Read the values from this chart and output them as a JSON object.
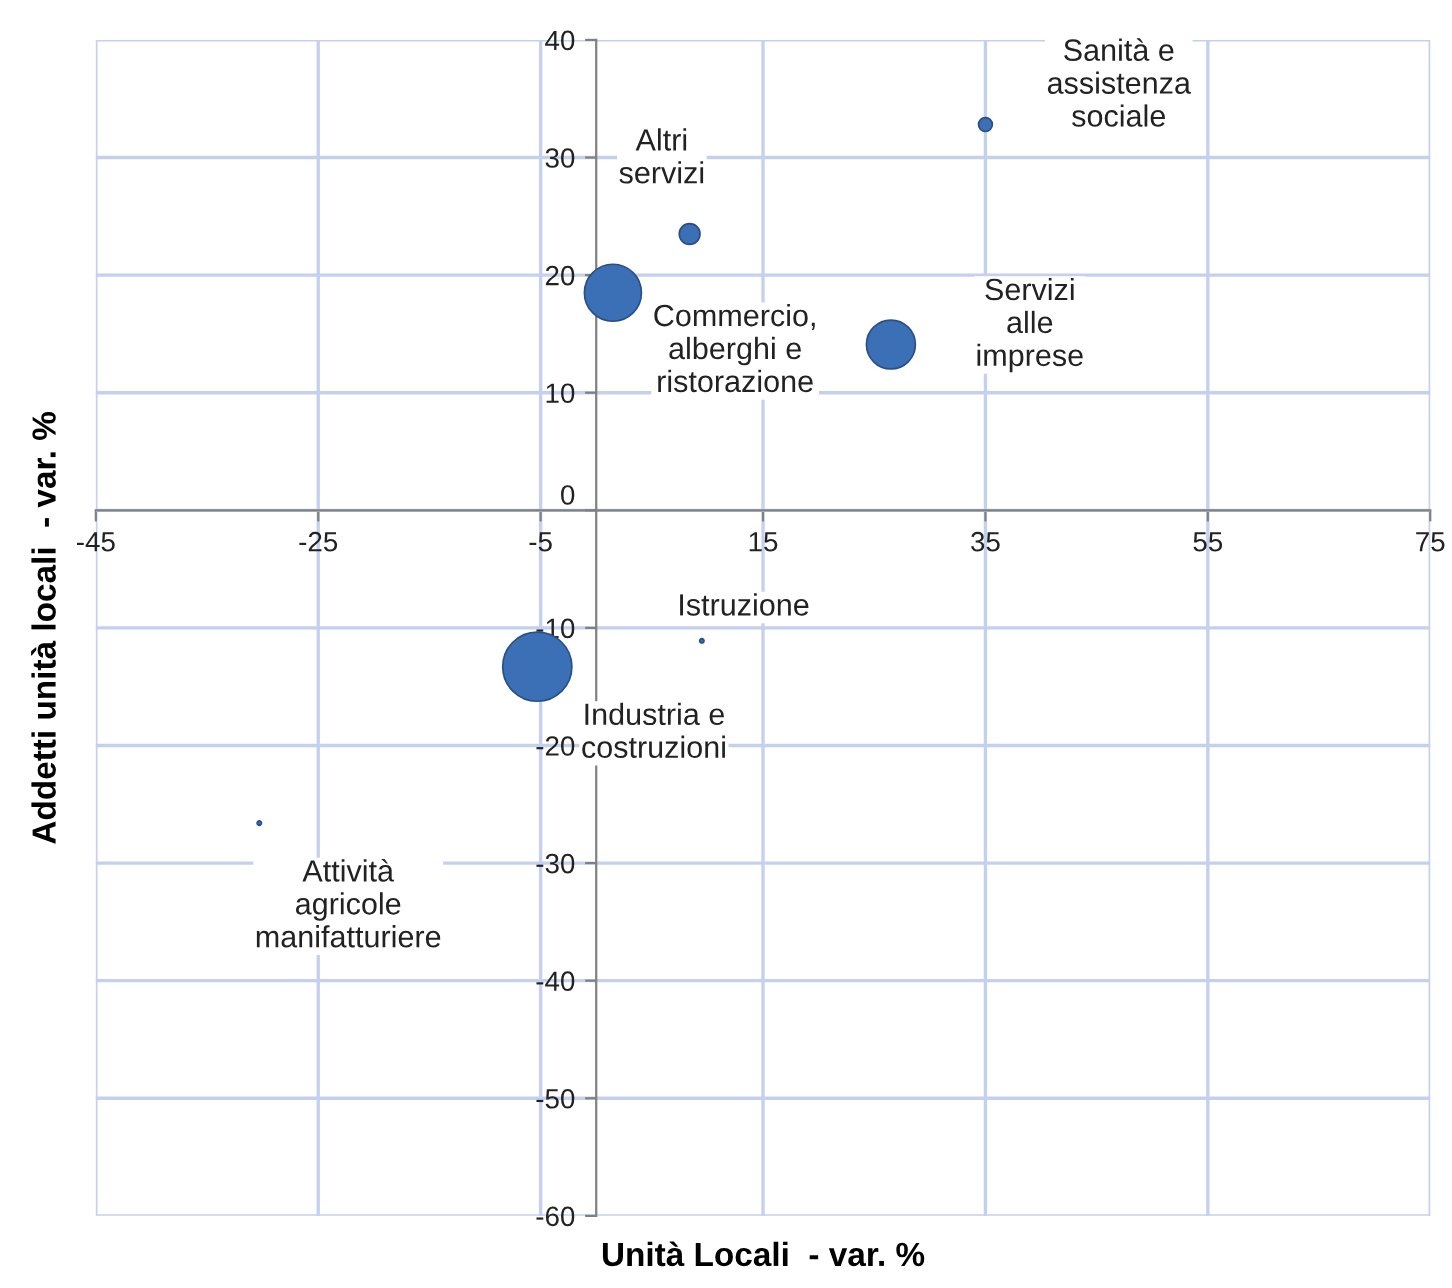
{
  "chart_data": {
    "type": "bubble",
    "xlabel": "Unità Locali  - var. %",
    "ylabel": "Addetti unità locali  - var. %",
    "x": [
      35,
      8.4,
      1.5,
      26.5,
      9.5,
      -5.3,
      -30.3
    ],
    "values": [
      32.8,
      23.5,
      18.5,
      14.1,
      -11.1,
      -13.3,
      -26.6
    ],
    "sizes": [
      0.04,
      0.09,
      0.68,
      0.5,
      0.004,
      1,
      0.004
    ],
    "color": "#3b6fb6",
    "annotations": [
      {
        "text": "Sanità e\nassistenza\nsociale",
        "x": 35,
        "y": 32.8
      },
      {
        "text": "Altri\nservizi",
        "x": 8.4,
        "y": 23.5
      },
      {
        "text": "Commercio,\nalberghi e\nristorazione",
        "x": 1.5,
        "y": 18.5
      },
      {
        "text": "Servizi\nalle\nimprese",
        "x": 26.5,
        "y": 14.1
      },
      {
        "text": "Istruzione",
        "x": 9.5,
        "y": -11.1
      },
      {
        "text": "Industria e\ncostruzioni",
        "x": -5.3,
        "y": -13.3
      },
      {
        "text": "Attività\nagricole\nmanifatturiere",
        "x": -30.3,
        "y": -26.6
      }
    ],
    "xlim": [
      -45,
      75
    ],
    "xticks": [
      -45,
      -25,
      -5,
      15,
      35,
      55,
      75
    ],
    "ylim": [
      -60,
      40
    ],
    "yticks": [
      -60,
      -50,
      -40,
      -30,
      -20,
      -10,
      0,
      10,
      20,
      30,
      40
    ],
    "grid": true
  }
}
